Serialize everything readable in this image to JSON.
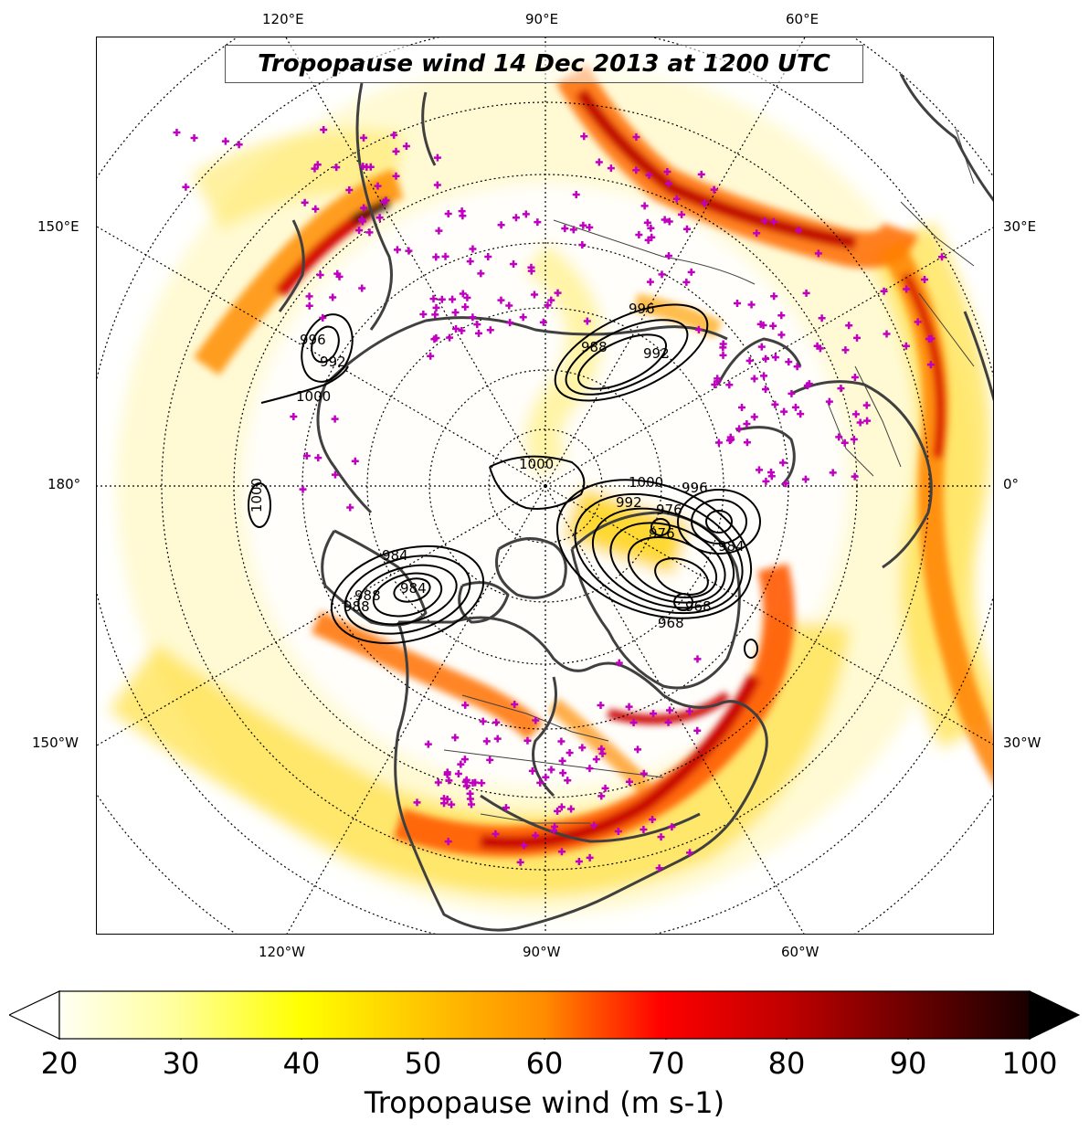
{
  "title": "Tropopause wind 14 Dec 2013 at 1200 UTC",
  "map": {
    "projection": "north polar stereographic",
    "longitude_labels": {
      "top": [
        "120°E",
        "90°E",
        "60°E"
      ],
      "bottom": [
        "120°W",
        "90°W",
        "60°W"
      ],
      "left": [
        "150°E",
        "180°",
        "150°W"
      ],
      "right": [
        "30°E",
        "0°",
        "30°W"
      ]
    },
    "pressure_contour_labels": [
      "1000",
      "996",
      "992",
      "988",
      "984",
      "976",
      "968",
      "1000",
      "996",
      "992",
      "988",
      "984",
      "1000",
      "996",
      "992",
      "988",
      "984",
      "976",
      "968",
      "1000"
    ],
    "colors": {
      "low_wind": "#ffffe0",
      "mid_wind": "#ffd000",
      "high_wind": "#e60000",
      "max_wind": "#1a0000",
      "station_marker": "#c000c0",
      "coastline": "#404040"
    }
  },
  "colorbar": {
    "label": "Tropopause wind (m s-1)",
    "min": 20,
    "max": 100,
    "ticks": [
      "20",
      "30",
      "40",
      "50",
      "60",
      "70",
      "80",
      "90",
      "100"
    ],
    "extend": "both"
  }
}
